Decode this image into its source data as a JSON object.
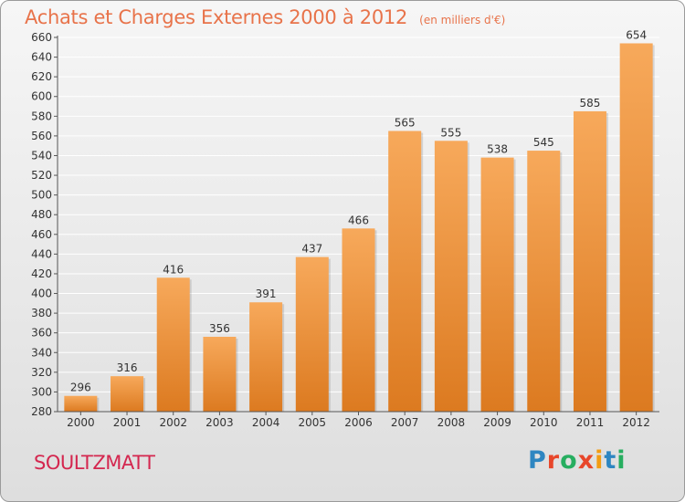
{
  "header": {
    "title": "Achats et Charges Externes 2000 à 2012",
    "subtitle": "(en milliers d'€)"
  },
  "footer": {
    "city": "SOULTZMATT",
    "brand": "Proxiti",
    "brand_colors": [
      "#2e86c1",
      "#e8462a",
      "#27ae60",
      "#e8462a",
      "#f39c12",
      "#2e86c1",
      "#27ae60"
    ]
  },
  "colors": {
    "bar_light": "#f7a95b",
    "bar_dark": "#dc7a20",
    "grid": "#ffffff",
    "axis": "#555555"
  },
  "chart_data": {
    "type": "bar",
    "categories": [
      "2000",
      "2001",
      "2002",
      "2003",
      "2004",
      "2005",
      "2006",
      "2007",
      "2008",
      "2009",
      "2010",
      "2011",
      "2012"
    ],
    "values": [
      296,
      316,
      416,
      356,
      391,
      437,
      466,
      565,
      555,
      538,
      545,
      585,
      654
    ],
    "title": "Achats et Charges Externes 2000 à 2012",
    "subtitle": "(en milliers d'€)",
    "xlabel": "",
    "ylabel": "",
    "ylim": [
      280,
      660
    ],
    "ytick_step": 20,
    "grid": true,
    "data_labels": true
  }
}
